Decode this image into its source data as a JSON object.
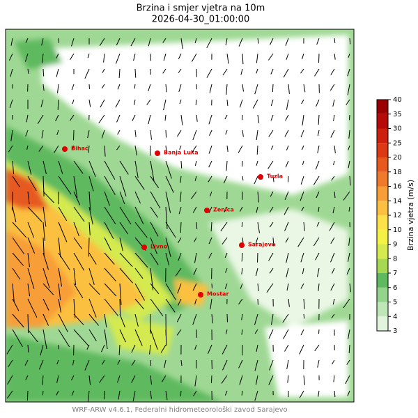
{
  "title": "Brzina i smjer vjetra na 10m",
  "subtitle": "2026-04-30_01:00:00",
  "cities": [
    "Bihać",
    "Banja Luka",
    "Tuzla",
    "Zenica",
    "Livno",
    "Sarajevo",
    "Mostar"
  ],
  "colorbar": {
    "label": "Brzina vjetra (m/s)",
    "ticks": [
      3,
      4,
      5,
      6,
      7,
      8,
      9,
      10,
      12,
      14,
      16,
      18,
      20,
      25,
      30,
      35,
      40
    ],
    "colors": [
      "#e2f4dd",
      "#bfe6b6",
      "#93d38c",
      "#5fb95f",
      "#a6d854",
      "#d4ea4f",
      "#f5f246",
      "#fde04a",
      "#fbc041",
      "#f89e38",
      "#f07a2c",
      "#e65a20",
      "#db3a15",
      "#cc1f0e",
      "#b50a08",
      "#9a0000"
    ]
  },
  "footer": "WRF-ARW v4.6.1, Federalni hidrometeorološki zavod Sarajevo"
}
